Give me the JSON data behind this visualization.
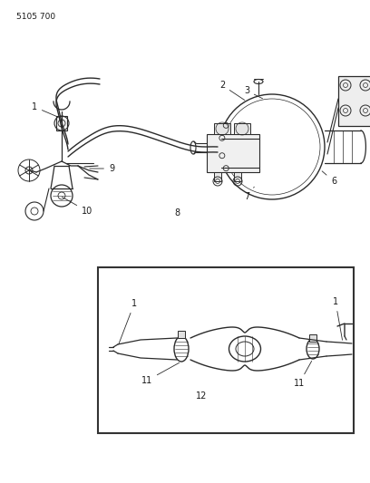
{
  "title": "5105 700",
  "bg": "#ffffff",
  "lc": "#2a2a2a",
  "tc": "#1a1a1a",
  "figsize": [
    4.08,
    5.33
  ],
  "dpi": 100
}
